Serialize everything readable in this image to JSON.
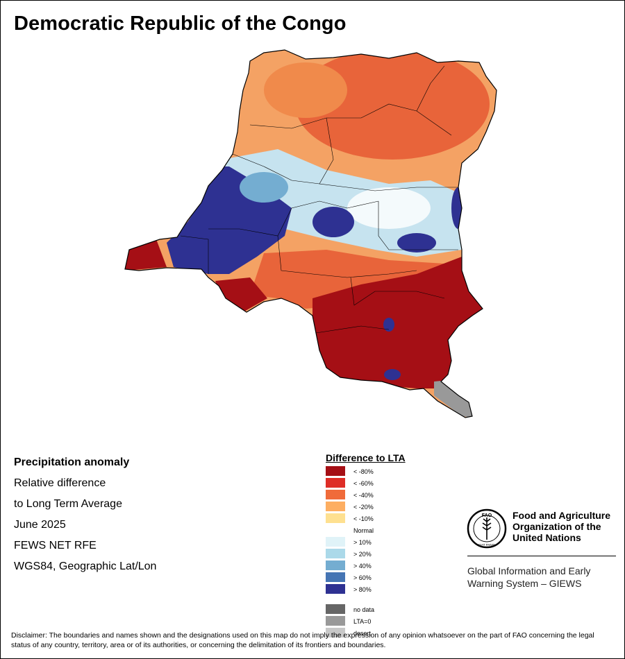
{
  "title": "Democratic Republic of the Congo",
  "map": {
    "regions": [
      {
        "name": "north-dry",
        "color": "#f08a4b"
      },
      {
        "name": "north-core-dry",
        "color": "#e8643a"
      },
      {
        "name": "west-wet",
        "color": "#2e3192"
      },
      {
        "name": "central-wet",
        "color": "#9ecae1"
      },
      {
        "name": "south-very-dry",
        "color": "#a50f15"
      },
      {
        "name": "no-data",
        "color": "#999999"
      }
    ]
  },
  "info": {
    "heading": "Precipitation anomaly",
    "line1": "Relative difference",
    "line2": "to Long Term Average",
    "period": "June 2025",
    "source": "FEWS NET RFE",
    "projection": "WGS84, Geographic Lat/Lon"
  },
  "legend": {
    "title": "Difference to LTA",
    "items": [
      {
        "label": "< -80%",
        "color": "#a50f15"
      },
      {
        "label": "< -60%",
        "color": "#de2d26"
      },
      {
        "label": "< -40%",
        "color": "#f06b3a"
      },
      {
        "label": "< -20%",
        "color": "#fdae61"
      },
      {
        "label": "< -10%",
        "color": "#fee090"
      },
      {
        "label": "Normal",
        "color": "#ffffff"
      },
      {
        "label": "> 10%",
        "color": "#e0f3f8"
      },
      {
        "label": "> 20%",
        "color": "#abd9e9"
      },
      {
        "label": "> 40%",
        "color": "#74add1"
      },
      {
        "label": "> 60%",
        "color": "#4575b4"
      },
      {
        "label": "> 80%",
        "color": "#2e3192"
      },
      {
        "label": "no data",
        "color": "#666666"
      },
      {
        "label": "LTA=0",
        "color": "#999999"
      },
      {
        "label": "desert",
        "color": "#c8c8c8"
      }
    ]
  },
  "org": {
    "name_line1": "Food and Agriculture",
    "name_line2": "Organization of the",
    "name_line3": "United Nations",
    "system_line1": "Global Information and Early",
    "system_line2": "Warning System – GIEWS",
    "logo_text": "FAO",
    "logo_motto": "FIAT PANIS"
  },
  "disclaimer": "Disclaimer: The boundaries and names shown and the designations used on this map do not imply the expression of any opinion whatsoever on the part of FAO concerning the legal status of any country, territory, area or of its authorities, or concerning the delimitation of its frontiers and boundaries."
}
